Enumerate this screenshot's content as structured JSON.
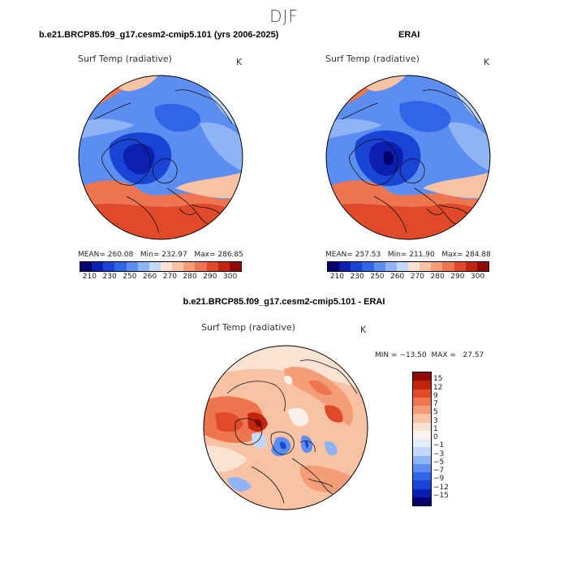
{
  "figure": {
    "title": "DJF"
  },
  "panels": {
    "model": {
      "header": "b.e21.BRCP85.f09_g17.cesm2-cmip5.101 (yrs 2006-2025)",
      "variable": "Surf Temp (radiative)",
      "units": "K",
      "mean_label": "MEAN=",
      "mean": "260.08",
      "min_label": "Min=",
      "min": "232.97",
      "max_label": "Max=",
      "max": "286.85"
    },
    "obs": {
      "header": "ERAI",
      "variable": "Surf Temp (radiative)",
      "units": "K",
      "mean_label": "MEAN=",
      "mean": "257.53",
      "min_label": "Min=",
      "min": "211.90",
      "max_label": "Max=",
      "max": "284.88"
    },
    "diff": {
      "header": "b.e21.BRCP85.f09_g17.cesm2-cmip5.101 - ERAI",
      "variable": "Surf Temp (radiative)",
      "units": "K",
      "minmax": "MIN = −13.50  MAX =   27.57"
    }
  },
  "colorbars": {
    "absolute": {
      "ticks": [
        "210",
        "230",
        "250",
        "260",
        "270",
        "280",
        "290",
        "300"
      ],
      "colors": [
        "#05006b",
        "#0b1fb0",
        "#1a44d6",
        "#2f66e8",
        "#5b8ef0",
        "#8fb4f6",
        "#c4d8fa",
        "#fbe3d3",
        "#f8c2a4",
        "#f59d77",
        "#ef7550",
        "#e04a2a",
        "#c2240f",
        "#8f0a06"
      ]
    },
    "difference": {
      "ticks": [
        "15",
        "12",
        "9",
        "7",
        "5",
        "3",
        "1",
        "0",
        "−1",
        "−3",
        "−5",
        "−7",
        "−9",
        "−12",
        "−15"
      ],
      "colors": [
        "#8f0a06",
        "#c2240f",
        "#e04a2a",
        "#ef7550",
        "#f59d77",
        "#f8c2a4",
        "#fbe3d3",
        "#fdf2ea",
        "#e4eefb",
        "#c4d8fa",
        "#8fb4f6",
        "#5b8ef0",
        "#2f66e8",
        "#1a44d6",
        "#0b1fb0",
        "#05006b"
      ]
    }
  }
}
